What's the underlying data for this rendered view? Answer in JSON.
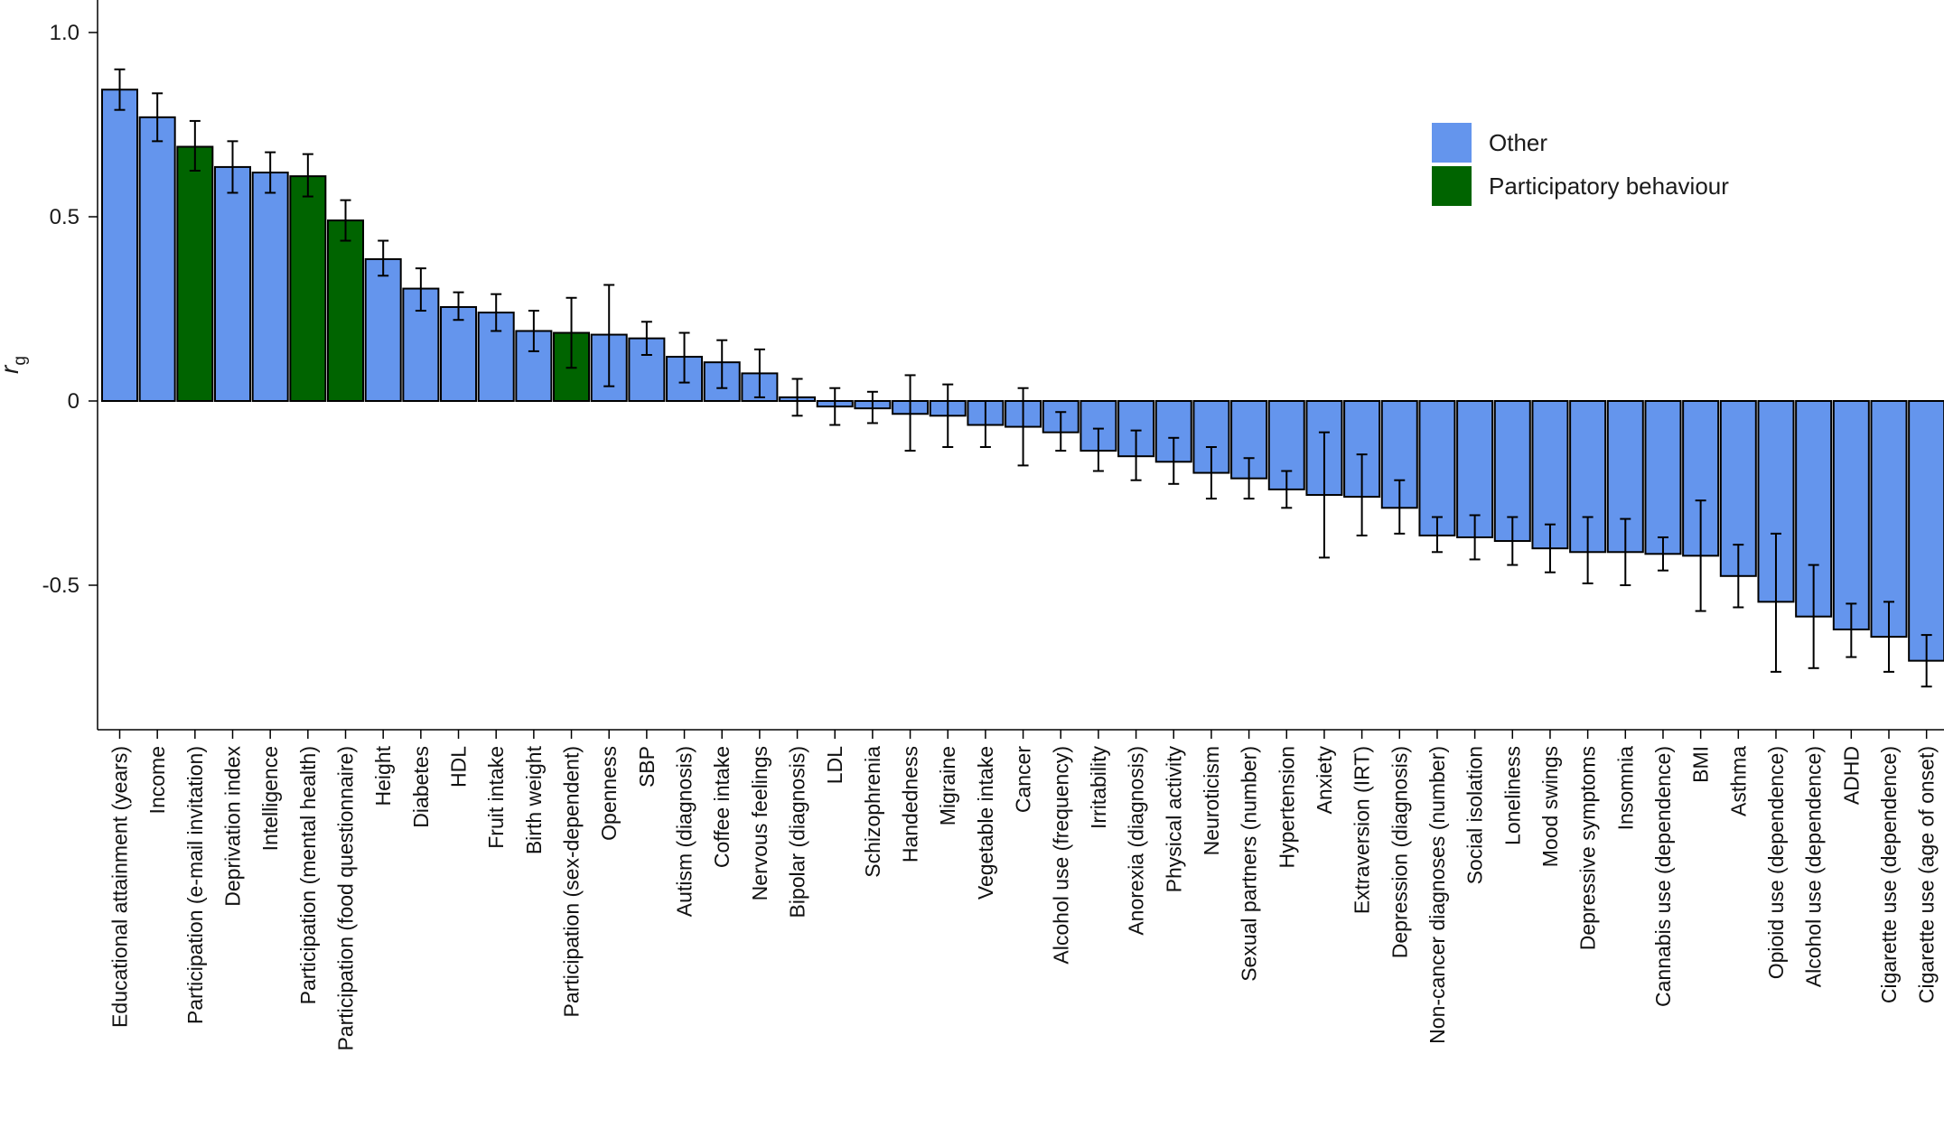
{
  "chart_data": {
    "type": "bar",
    "title": "",
    "xlabel": "",
    "ylabel": "r",
    "ylabel_subscript": "g",
    "ylim": [
      -0.9,
      1.08
    ],
    "yticks": [
      {
        "value": 1.0,
        "label": "1.0"
      },
      {
        "value": 0.5,
        "label": "0.5"
      },
      {
        "value": 0,
        "label": "0"
      },
      {
        "value": -0.5,
        "label": "-0.5"
      }
    ],
    "grid": false,
    "legend_position": "top-right",
    "legend": [
      {
        "name": "Other",
        "color": "#6495ED"
      },
      {
        "name": "Participatory behaviour",
        "color": "#006400"
      }
    ],
    "groups": [
      "Other",
      "Participatory behaviour"
    ],
    "colors": {
      "Other": "#6495ED",
      "Participatory behaviour": "#006400"
    },
    "categories": [
      "Educational attainment (years)",
      "Income",
      "Participation (e-mail invitation)",
      "Deprivation index",
      "Intelligence",
      "Participation (mental health)",
      "Participation (food questionnaire)",
      "Height",
      "Diabetes",
      "HDL",
      "Fruit intake",
      "Birth weight",
      "Participation (sex-dependent)",
      "Openness",
      "SBP",
      "Autism (diagnosis)",
      "Coffee intake",
      "Nervous feelings",
      "Bipolar (diagnosis)",
      "LDL",
      "Schizophrenia",
      "Handedness",
      "Migraine",
      "Vegetable intake",
      "Cancer",
      "Alcohol use (frequency)",
      "Irritability",
      "Anorexia (diagnosis)",
      "Physical activity",
      "Neuroticism",
      "Sexual partners (number)",
      "Hypertension",
      "Anxiety",
      "Extraversion (IRT)",
      "Depression (diagnosis)",
      "Non-cancer diagnoses (number)",
      "Social isolation",
      "Loneliness",
      "Mood swings",
      "Depressive symptoms",
      "Insomnia",
      "Cannabis use (dependence)",
      "BMI",
      "Asthma",
      "Opioid use (dependence)",
      "Alcohol use (dependence)",
      "ADHD",
      "Cigarette use (dependence)",
      "Cigarette use (age of onset)"
    ],
    "values": [
      0.845,
      0.77,
      0.69,
      0.635,
      0.62,
      0.61,
      0.49,
      0.385,
      0.305,
      0.255,
      0.24,
      0.19,
      0.185,
      0.18,
      0.17,
      0.12,
      0.105,
      0.075,
      0.01,
      -0.015,
      -0.02,
      -0.035,
      -0.04,
      -0.065,
      -0.07,
      -0.085,
      -0.135,
      -0.15,
      -0.165,
      -0.195,
      -0.21,
      -0.24,
      -0.255,
      -0.26,
      -0.29,
      -0.365,
      -0.37,
      -0.38,
      -0.4,
      -0.41,
      -0.41,
      -0.415,
      -0.42,
      -0.475,
      -0.545,
      -0.585,
      -0.62,
      -0.64,
      -0.705
    ],
    "error_low": [
      0.79,
      0.705,
      0.625,
      0.565,
      0.565,
      0.555,
      0.435,
      0.34,
      0.245,
      0.22,
      0.19,
      0.135,
      0.09,
      0.04,
      0.125,
      0.05,
      0.035,
      0.01,
      -0.04,
      -0.065,
      -0.06,
      -0.135,
      -0.125,
      -0.125,
      -0.175,
      -0.135,
      -0.19,
      -0.215,
      -0.225,
      -0.265,
      -0.265,
      -0.29,
      -0.425,
      -0.365,
      -0.36,
      -0.41,
      -0.43,
      -0.445,
      -0.465,
      -0.495,
      -0.5,
      -0.46,
      -0.57,
      -0.56,
      -0.735,
      -0.725,
      -0.695,
      -0.735,
      -0.775
    ],
    "error_high": [
      0.9,
      0.835,
      0.76,
      0.705,
      0.675,
      0.67,
      0.545,
      0.435,
      0.36,
      0.295,
      0.29,
      0.245,
      0.28,
      0.315,
      0.215,
      0.185,
      0.165,
      0.14,
      0.06,
      0.035,
      0.025,
      0.07,
      0.045,
      0.0,
      0.035,
      -0.03,
      -0.075,
      -0.08,
      -0.1,
      -0.125,
      -0.155,
      -0.19,
      -0.085,
      -0.145,
      -0.215,
      -0.315,
      -0.31,
      -0.315,
      -0.335,
      -0.315,
      -0.32,
      -0.37,
      -0.27,
      -0.39,
      -0.36,
      -0.445,
      -0.55,
      -0.545,
      -0.635
    ],
    "bar_groups": [
      "Other",
      "Other",
      "Participatory behaviour",
      "Other",
      "Other",
      "Participatory behaviour",
      "Participatory behaviour",
      "Other",
      "Other",
      "Other",
      "Other",
      "Other",
      "Participatory behaviour",
      "Other",
      "Other",
      "Other",
      "Other",
      "Other",
      "Other",
      "Other",
      "Other",
      "Other",
      "Other",
      "Other",
      "Other",
      "Other",
      "Other",
      "Other",
      "Other",
      "Other",
      "Other",
      "Other",
      "Other",
      "Other",
      "Other",
      "Other",
      "Other",
      "Other",
      "Other",
      "Other",
      "Other",
      "Other",
      "Other",
      "Other",
      "Other",
      "Other",
      "Other",
      "Other",
      "Other"
    ]
  }
}
